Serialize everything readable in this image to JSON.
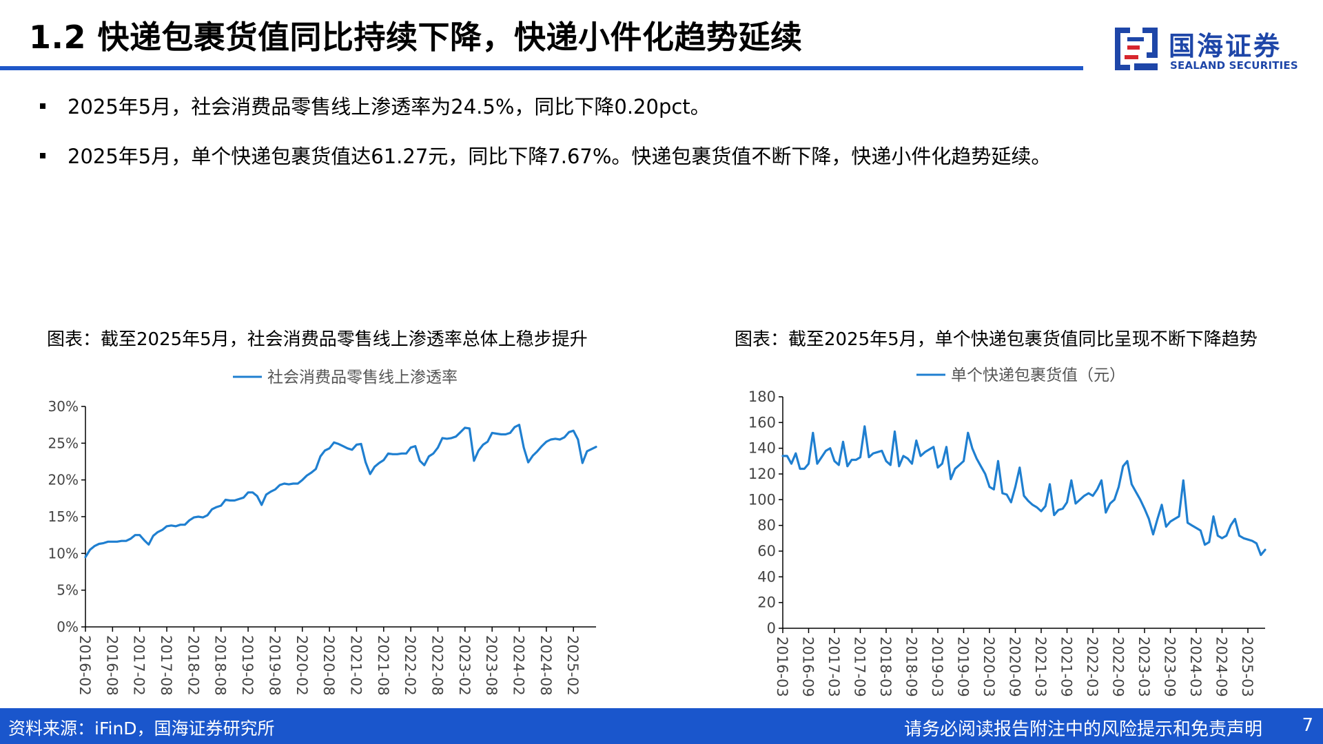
{
  "header": {
    "title": "1.2 快递包裹货值同比持续下降，快递小件化趋势延续",
    "logo_cn": "国海证券",
    "logo_en": "SEALAND SECURITIES",
    "accent_color": "#1f57c8",
    "logo_red": "#d7262e"
  },
  "bullets": [
    "2025年5月，社会消费品零售线上渗透率为24.5%，同比下降0.20pct。",
    "2025年5月，单个快递包裹货值达61.27元，同比下降7.67%。快递包裹货值不断下降，快递小件化趋势延续。"
  ],
  "chart_captions": [
    "图表：截至2025年5月，社会消费品零售线上渗透率总体上稳步提升",
    "图表：截至2025年5月，单个快递包裹货值同比呈现不断下降趋势"
  ],
  "chart_data": [
    {
      "type": "line",
      "title": "",
      "xlabel": "",
      "ylabel": "",
      "line_color": "#1f7fd0",
      "legend_position": "top",
      "grid": false,
      "ylim": [
        0,
        30
      ],
      "y_ticks": [
        "0%",
        "5%",
        "10%",
        "15%",
        "20%",
        "25%",
        "30%"
      ],
      "x_ticks": [
        "2016-02",
        "2016-08",
        "2017-02",
        "2017-08",
        "2018-02",
        "2018-08",
        "2019-02",
        "2019-08",
        "2020-02",
        "2020-08",
        "2021-02",
        "2021-08",
        "2022-02",
        "2022-08",
        "2023-02",
        "2023-08",
        "2024-02",
        "2024-08",
        "2025-02"
      ],
      "x_start": "2016-02",
      "series": [
        {
          "name": "社会消费品零售线上渗透率",
          "values": [
            9.5,
            10.5,
            11.0,
            11.3,
            11.4,
            11.6,
            11.6,
            11.6,
            11.7,
            11.7,
            12.0,
            12.5,
            12.5,
            11.8,
            11.2,
            12.4,
            12.9,
            13.2,
            13.7,
            13.8,
            13.7,
            13.9,
            13.9,
            14.5,
            14.9,
            15.0,
            14.9,
            15.2,
            16.0,
            16.3,
            16.5,
            17.3,
            17.2,
            17.2,
            17.4,
            17.6,
            18.3,
            18.3,
            17.8,
            16.6,
            18.0,
            18.4,
            18.7,
            19.3,
            19.5,
            19.4,
            19.5,
            19.5,
            20.0,
            20.6,
            21.0,
            21.5,
            23.2,
            24.0,
            24.3,
            25.1,
            24.9,
            24.6,
            24.3,
            24.1,
            24.8,
            24.9,
            22.4,
            20.8,
            21.8,
            22.3,
            22.7,
            23.6,
            23.5,
            23.5,
            23.6,
            23.6,
            24.4,
            24.6,
            22.6,
            22.0,
            23.2,
            23.6,
            24.4,
            25.7,
            25.6,
            25.7,
            25.9,
            26.5,
            27.1,
            27.0,
            22.6,
            24.0,
            24.8,
            25.2,
            26.4,
            26.3,
            26.2,
            26.2,
            26.4,
            27.2,
            27.5,
            24.4,
            22.4,
            23.3,
            23.9,
            24.6,
            25.2,
            25.5,
            25.6,
            25.5,
            25.8,
            26.5,
            26.7,
            25.5,
            22.3,
            23.9,
            24.2,
            24.5
          ]
        }
      ]
    },
    {
      "type": "line",
      "title": "",
      "xlabel": "",
      "ylabel": "",
      "line_color": "#1f7fd0",
      "legend_position": "top",
      "grid": false,
      "ylim": [
        0,
        180
      ],
      "y_ticks": [
        "0",
        "20",
        "40",
        "60",
        "80",
        "100",
        "120",
        "140",
        "160",
        "180"
      ],
      "x_ticks": [
        "2016-03",
        "2016-09",
        "2017-03",
        "2017-09",
        "2018-03",
        "2018-09",
        "2019-03",
        "2019-09",
        "2020-03",
        "2020-09",
        "2021-03",
        "2021-09",
        "2022-03",
        "2022-09",
        "2023-03",
        "2023-09",
        "2024-03",
        "2024-09",
        "2025-03"
      ],
      "x_start": "2016-03",
      "series": [
        {
          "name": "单个快递包裹货值（元）",
          "values": [
            134,
            134,
            128,
            136,
            124,
            124,
            128,
            152,
            128,
            133,
            138,
            140,
            130,
            127,
            145,
            126,
            131,
            131,
            133,
            157,
            133,
            136,
            137,
            138,
            130,
            127,
            153,
            126,
            134,
            132,
            128,
            146,
            134,
            137,
            139,
            141,
            125,
            128,
            141,
            116,
            124,
            127,
            130,
            152,
            140,
            132,
            126,
            120,
            110,
            108,
            130,
            105,
            104,
            98,
            110,
            125,
            103,
            99,
            96,
            94,
            91,
            95,
            112,
            88,
            92,
            93,
            98,
            115,
            97,
            100,
            103,
            105,
            103,
            108,
            115,
            90,
            97,
            100,
            110,
            126,
            130,
            112,
            106,
            100,
            93,
            85,
            73,
            85,
            96,
            79,
            83,
            85,
            87,
            115,
            82,
            80,
            78,
            76,
            65,
            67,
            87,
            72,
            70,
            72,
            80,
            85,
            72,
            70,
            69,
            68,
            66,
            57,
            61
          ]
        }
      ]
    }
  ],
  "footer": {
    "source": "资料来源：iFinD，国海证券研究所",
    "disclaimer": "请务必阅读报告附注中的风险提示和免责声明",
    "page_number": "7",
    "bar_color": "#1a56cc"
  }
}
